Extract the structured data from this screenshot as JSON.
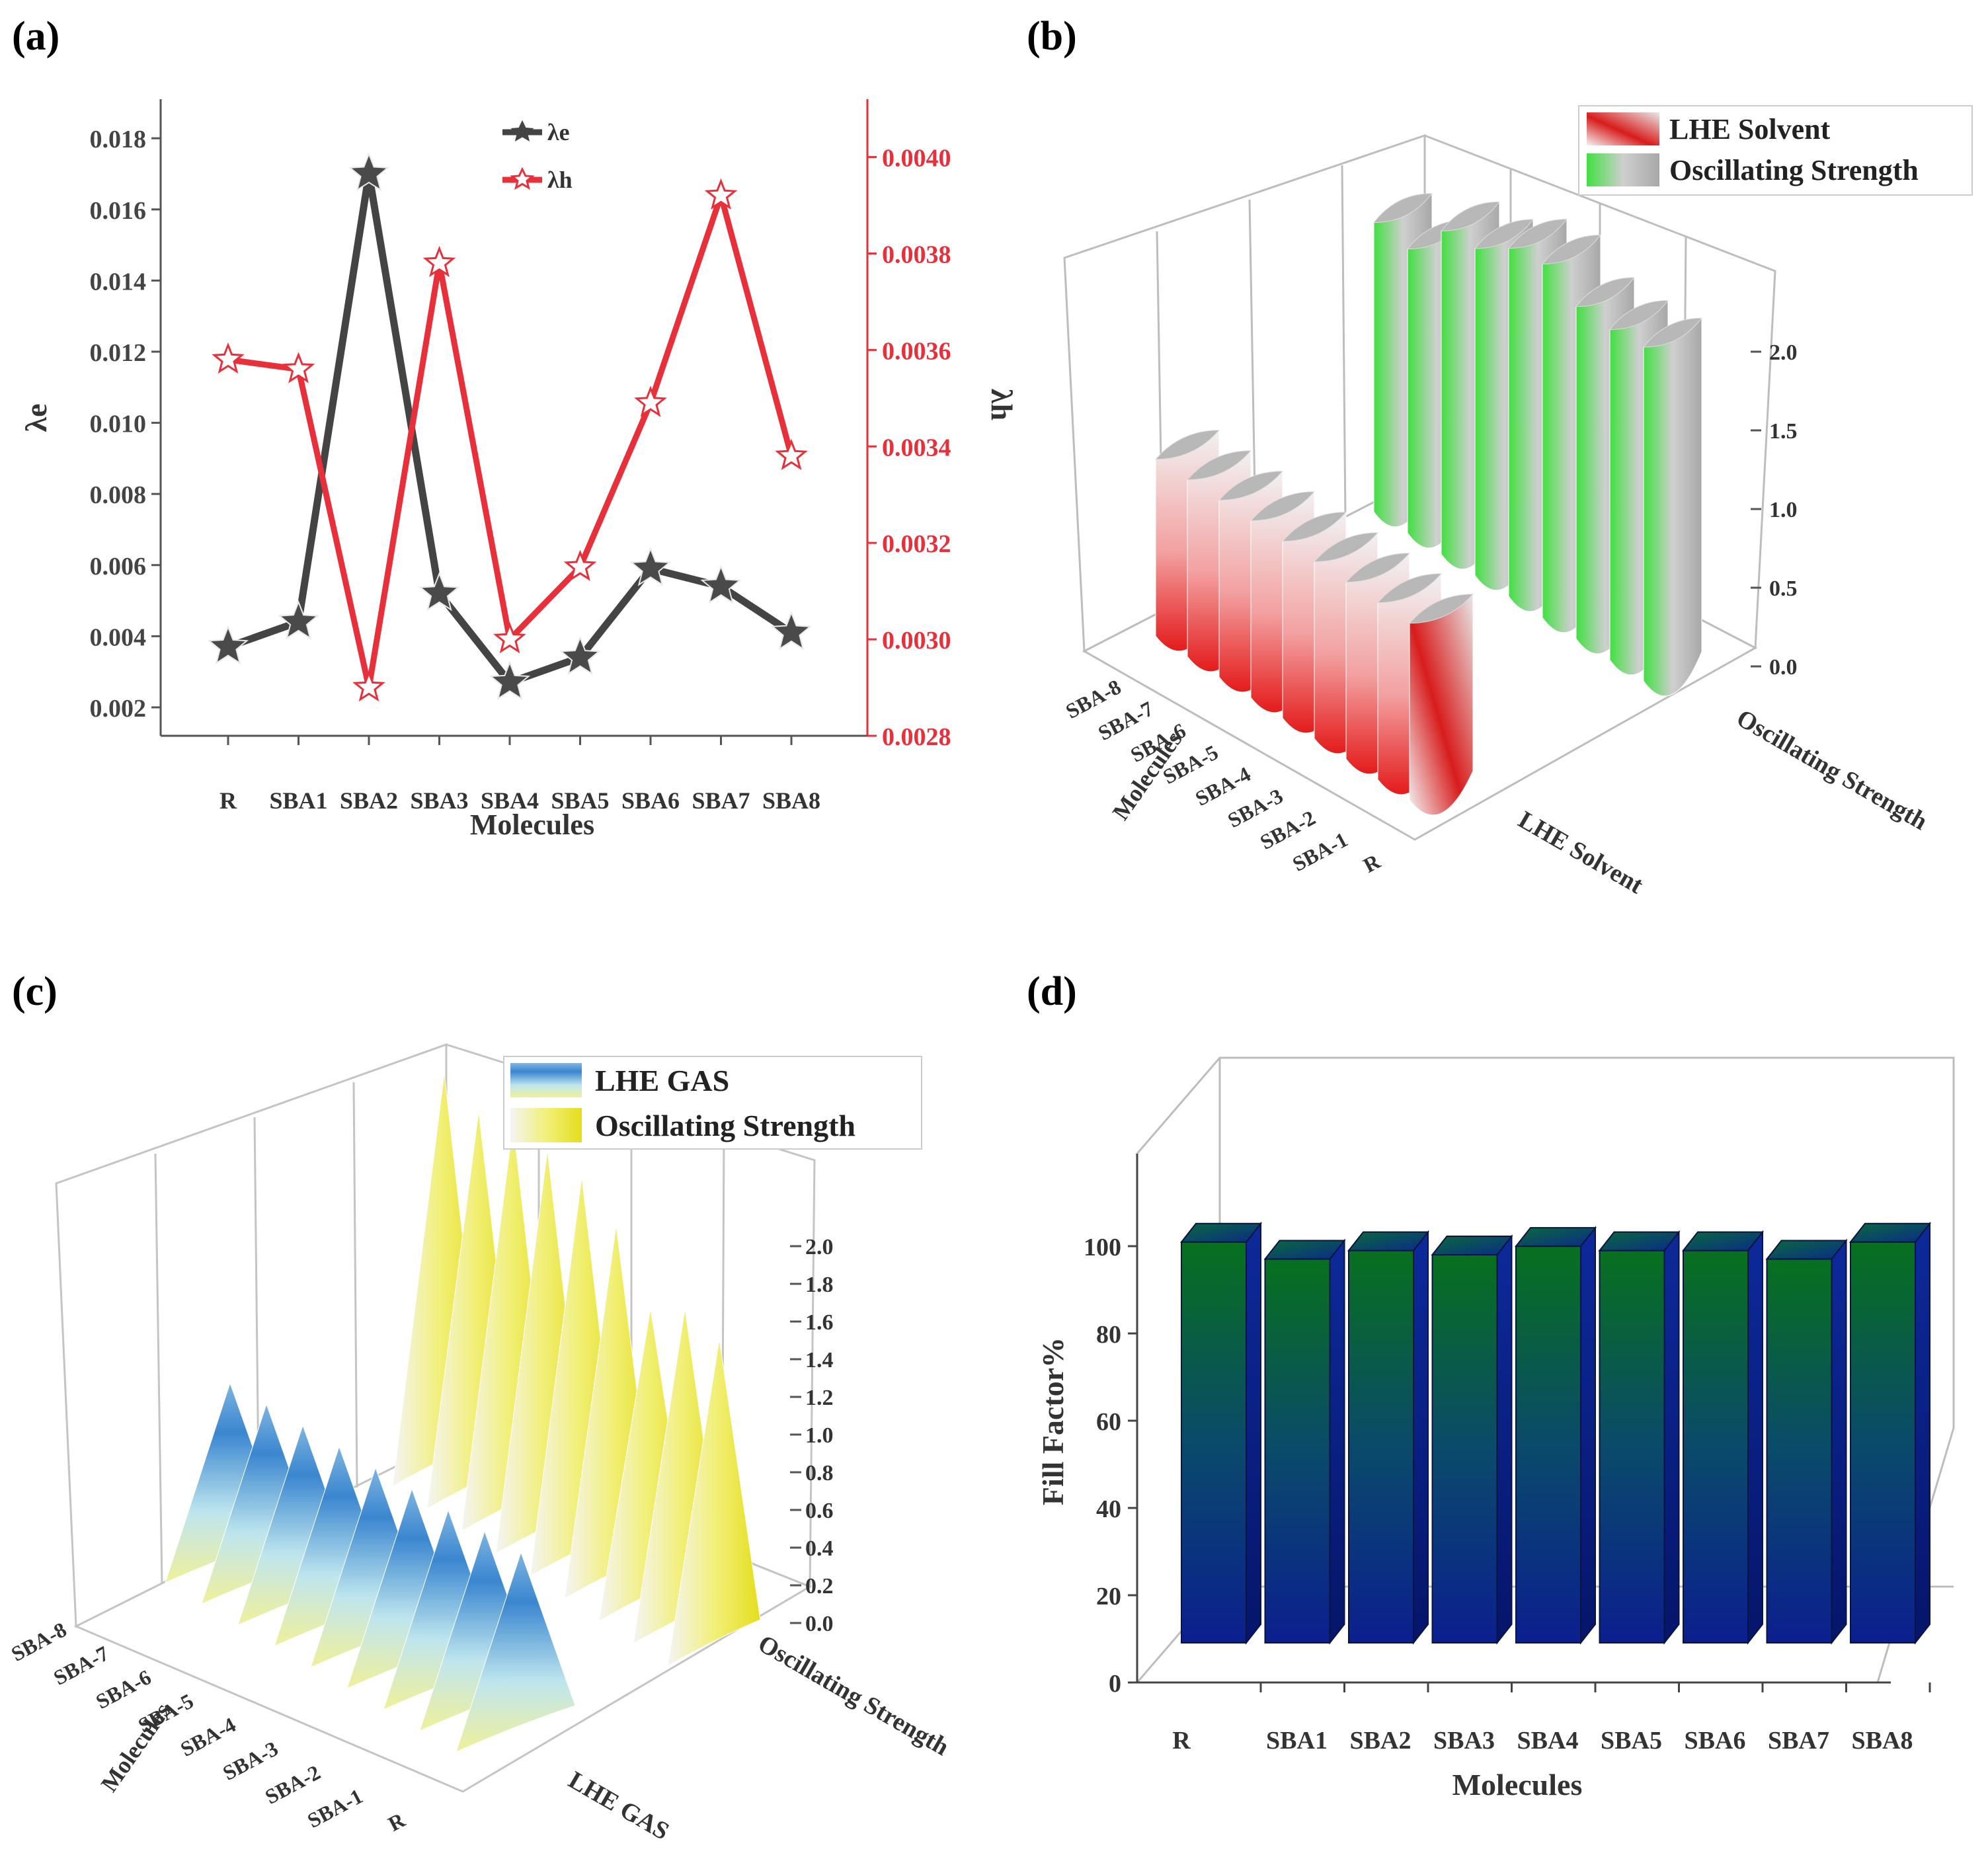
{
  "colors": {
    "lambda_e": "#444444",
    "lambda_h": "#e8303a",
    "red_bar": "#e82020",
    "green_bar": "#40e040",
    "blue_bar": "#3a86d0",
    "yellow_bar": "#e8e020",
    "ff_bottom": "#0b1f8f",
    "ff_top": "#08701e",
    "grid": "#cfcfcf"
  },
  "panels": {
    "a": "(a)",
    "b": "(b)",
    "c": "(c)",
    "d": "(d)"
  },
  "chart_data": [
    {
      "panel": "a",
      "type": "line",
      "categories": [
        "R",
        "SBA1",
        "SBA2",
        "SBA3",
        "SBA4",
        "SBA5",
        "SBA6",
        "SBA7",
        "SBA8"
      ],
      "xlabel": "Molecules",
      "ylabel_left": "λe",
      "ylabel_right": "λh",
      "left_ticks": [
        "0.002",
        "0.004",
        "0.006",
        "0.008",
        "0.010",
        "0.012",
        "0.014",
        "0.016",
        "0.018"
      ],
      "right_ticks": [
        "0.0028",
        "0.0030",
        "0.0032",
        "0.0034",
        "0.0036",
        "0.0038",
        "0.0040"
      ],
      "ylim_left": [
        0.0012,
        0.0191
      ],
      "ylim_right": [
        0.0028,
        0.00412
      ],
      "series": [
        {
          "name": "λe",
          "axis": "left",
          "values": [
            0.0037,
            0.0044,
            0.017,
            0.0052,
            0.0027,
            0.0034,
            0.0059,
            0.0054,
            0.0041
          ]
        },
        {
          "name": "λh",
          "axis": "right",
          "values": [
            0.00358,
            0.00356,
            0.0029,
            0.00378,
            0.003,
            0.00315,
            0.00349,
            0.00392,
            0.00338
          ]
        }
      ]
    },
    {
      "panel": "b",
      "type": "bar",
      "legend": [
        "LHE Solvent",
        "Oscillating Strength"
      ],
      "molecules": [
        "R",
        "SBA-1",
        "SBA-2",
        "SBA-3",
        "SBA-4",
        "SBA-5",
        "SBA-6",
        "SBA-7",
        "SBA-8"
      ],
      "series_axis": [
        "LHE Solvent",
        "Oscillating Strength"
      ],
      "molecules_label": "Molecules",
      "zticks": [
        "0.0",
        "0.5",
        "1.0",
        "1.5",
        "2.0"
      ],
      "zlim": [
        0,
        2.2
      ],
      "series": [
        {
          "name": "LHE Solvent",
          "values": [
            0.99,
            0.99,
            0.99,
            0.99,
            0.99,
            0.99,
            0.99,
            0.99,
            0.99
          ]
        },
        {
          "name": "Oscillating Strength",
          "values": [
            1.87,
            1.85,
            1.86,
            1.98,
            1.95,
            1.83,
            1.81,
            1.59,
            1.62
          ]
        }
      ]
    },
    {
      "panel": "c",
      "type": "bar",
      "legend": [
        "LHE GAS",
        "Oscillating Strength"
      ],
      "molecules": [
        "R",
        "SBA-1",
        "SBA-2",
        "SBA-3",
        "SBA-4",
        "SBA-5",
        "SBA-6",
        "SBA-7",
        "SBA-8"
      ],
      "series_axis": [
        "LHE GAS",
        "Oscillating Strength"
      ],
      "molecules_label": "Molecules",
      "zticks": [
        "0.0",
        "0.2",
        "0.4",
        "0.6",
        "0.8",
        "1.0",
        "1.2",
        "1.4",
        "1.6",
        "1.8",
        "2.0"
      ],
      "zlim": [
        0,
        2.15
      ],
      "series": [
        {
          "name": "LHE GAS",
          "values": [
            0.99,
            0.99,
            0.99,
            0.99,
            0.99,
            0.99,
            0.99,
            0.99,
            0.99
          ]
        },
        {
          "name": "Oscillating Strength",
          "values": [
            1.62,
            1.66,
            1.55,
            1.85,
            1.98,
            2.0,
            2.02,
            1.97,
            2.05
          ]
        }
      ]
    },
    {
      "panel": "d",
      "type": "bar",
      "categories": [
        "R",
        "SBA1",
        "SBA2",
        "SBA3",
        "SBA4",
        "SBA5",
        "SBA6",
        "SBA7",
        "SBA8"
      ],
      "values": [
        94,
        90,
        92,
        91,
        93,
        92,
        92,
        90,
        94
      ],
      "xlabel": "Molecules",
      "ylabel": "Fill Factor%",
      "yticks": [
        "0",
        "20",
        "40",
        "60",
        "80",
        "100"
      ],
      "ylim": [
        0,
        120
      ]
    }
  ]
}
